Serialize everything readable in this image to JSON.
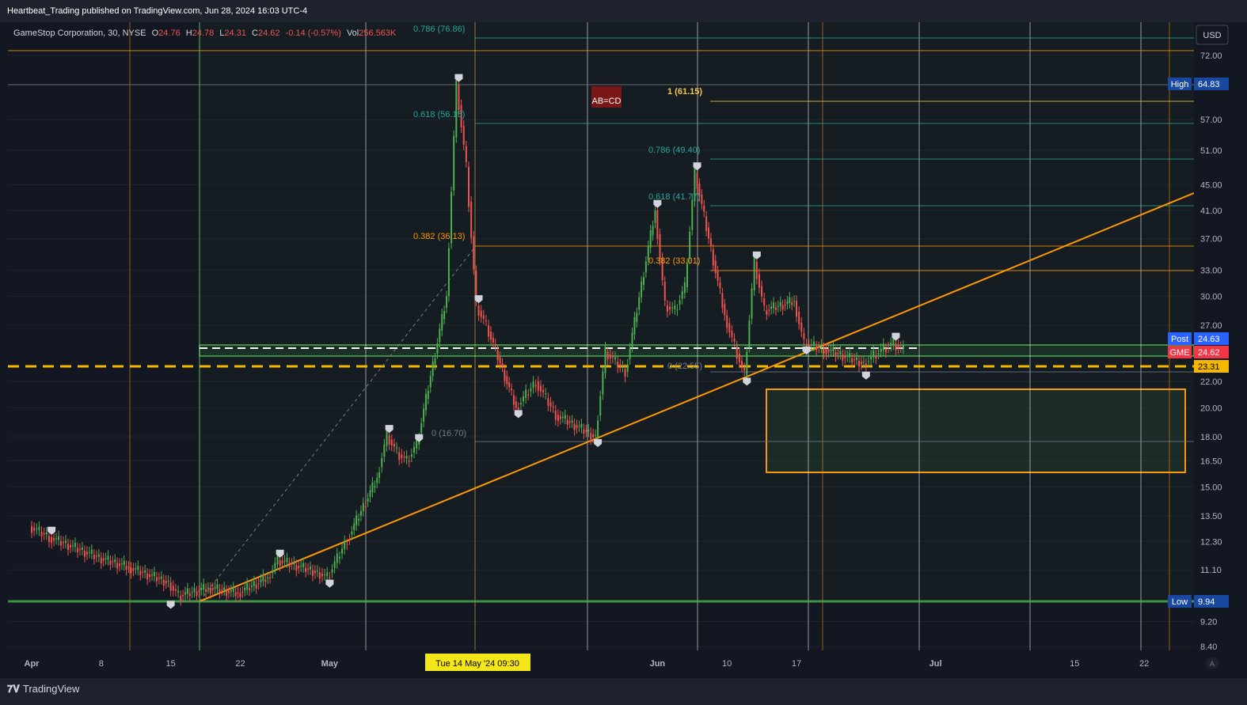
{
  "published": "Heartbeat_Trading published on TradingView.com, Jun 28, 2024 16:03 UTC-4",
  "footer_brand": "TradingView",
  "currency": "USD",
  "legend": {
    "symbol": "GameStop Corporation, 30, NYSE",
    "o_label": "O",
    "o": "24.76",
    "h_label": "H",
    "h": "24.78",
    "l_label": "L",
    "l": "24.31",
    "c_label": "C",
    "c": "24.62",
    "change": "-0.14 (-0.57%)",
    "vol_label": "Vol",
    "vol": "256.563K"
  },
  "colors": {
    "background": "#131722",
    "up": "#26a69a",
    "down": "#ef5350",
    "green": "#4caf50",
    "orange": "#ff9800",
    "yellow": "#f7c548",
    "white": "#ffffff",
    "teal": "#26a69a"
  },
  "chart_data": {
    "type": "candlestick",
    "symbol": "GME",
    "interval": "30",
    "y_axis": {
      "scale": "log",
      "ticks": [
        "72.00",
        "57.00",
        "51.00",
        "45.00",
        "41.00",
        "37.00",
        "33.00",
        "30.00",
        "27.00",
        "22.00",
        "20.00",
        "18.00",
        "16.50",
        "15.00",
        "13.50",
        "12.30",
        "11.10",
        "9.20",
        "8.40"
      ]
    },
    "x_axis": {
      "ticks": [
        {
          "label": "Apr",
          "bold": true
        },
        {
          "label": "8"
        },
        {
          "label": "15"
        },
        {
          "label": "22"
        },
        {
          "label": "May",
          "bold": true
        },
        {
          "label": "10"
        },
        {
          "label": "Jun",
          "bold": true
        },
        {
          "label": "10"
        },
        {
          "label": "17"
        },
        {
          "label": "Jul",
          "bold": true
        },
        {
          "label": "15"
        },
        {
          "label": "22"
        }
      ],
      "crosshair_label": "Tue 14 May '24   09:30"
    },
    "price_badges": {
      "high": {
        "label": "High",
        "value": "64.83"
      },
      "post": {
        "label": "Post",
        "value": "24.63"
      },
      "gme": {
        "label": "GME",
        "value": "24.62"
      },
      "level": {
        "label": "",
        "value": "23.31"
      },
      "low": {
        "label": "Low",
        "value": "9.94"
      }
    },
    "fib_labels": [
      {
        "text": "0.786 (76.86)",
        "color": "teal"
      },
      {
        "text": "0.618 (56.15)",
        "color": "teal"
      },
      {
        "text": "0.382 (36.13)",
        "color": "orange"
      },
      {
        "text": "0 (16.70)",
        "color": "gray"
      },
      {
        "text": "1 (61.15)",
        "color": "yellow"
      },
      {
        "text": "0.786 (49.40)",
        "color": "teal"
      },
      {
        "text": "0.618 (41.77)",
        "color": "teal"
      },
      {
        "text": "0.382 (33.01)",
        "color": "orange"
      },
      {
        "text": "0 (22.55)",
        "color": "gray"
      }
    ],
    "pattern_label": "AB=CD",
    "approx_path": [
      [
        "Apr 1",
        13.0
      ],
      [
        "Apr 3",
        12.5
      ],
      [
        "Apr 8",
        11.6
      ],
      [
        "Apr 11",
        11.2
      ],
      [
        "Apr 15",
        10.6
      ],
      [
        "Apr 16",
        10.1
      ],
      [
        "Apr 19",
        10.4
      ],
      [
        "Apr 22",
        10.2
      ],
      [
        "Apr 25",
        10.8
      ],
      [
        "Apr 26",
        11.5
      ],
      [
        "Apr 30",
        11.0
      ],
      [
        "May 1",
        10.8
      ],
      [
        "May 3",
        12.4
      ],
      [
        "May 6",
        15.5
      ],
      [
        "May 7",
        18.1
      ],
      [
        "May 8",
        17.0
      ],
      [
        "May 9",
        16.5
      ],
      [
        "May 10",
        17.5
      ],
      [
        "May 13",
        30.0
      ],
      [
        "May 14",
        64.8
      ],
      [
        "May 15",
        48.0
      ],
      [
        "May 16",
        29.0
      ],
      [
        "May 17",
        27.0
      ],
      [
        "May 20",
        20.0
      ],
      [
        "May 22",
        22.0
      ],
      [
        "May 24",
        19.5
      ],
      [
        "May 28",
        18.0
      ],
      [
        "May 29",
        24.5
      ],
      [
        "May 31",
        22.8
      ],
      [
        "Jun 3",
        41.0
      ],
      [
        "Jun 4",
        29.0
      ],
      [
        "Jun 5",
        28.5
      ],
      [
        "Jun 6",
        31.0
      ],
      [
        "Jun 7",
        47.0
      ],
      [
        "Jun 10",
        28.0
      ],
      [
        "Jun 11",
        25.0
      ],
      [
        "Jun 12",
        22.5
      ],
      [
        "Jun 13",
        34.0
      ],
      [
        "Jun 14",
        28.5
      ],
      [
        "Jun 17",
        29.5
      ],
      [
        "Jun 18",
        25.2
      ],
      [
        "Jun 20",
        24.8
      ],
      [
        "Jun 24",
        23.5
      ],
      [
        "Jun 25",
        24.2
      ],
      [
        "Jun 26",
        24.8
      ],
      [
        "Jun 27",
        25.3
      ],
      [
        "Jun 28",
        24.62
      ]
    ]
  }
}
